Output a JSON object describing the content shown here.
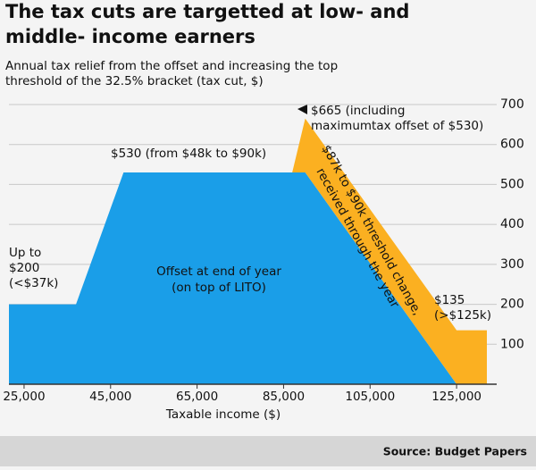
{
  "chart_data": {
    "type": "area",
    "title": [
      "The tax cuts are targetted at low- and",
      "middle- income earners"
    ],
    "subtitle": [
      "Annual tax relief from the offset and increasing the top",
      "threshold of the 32.5% bracket (tax cut, $)"
    ],
    "x_label": "Taxable income ($)",
    "source": "Source: Budget Papers",
    "stacked": true,
    "x": [
      21500,
      37000,
      48000,
      87000,
      90000,
      125000,
      132000
    ],
    "series": [
      {
        "name": [
          "Offset at end of year",
          "(on top of LITO)"
        ],
        "color": "#1a9ee8",
        "values": [
          200,
          200,
          530,
          530,
          530,
          0,
          0
        ]
      },
      {
        "name": [
          "$87k to $90k threshold change,",
          "received through the year"
        ],
        "color": "#fbb021",
        "values": [
          0,
          0,
          0,
          0,
          135,
          135,
          135
        ]
      }
    ],
    "annotations": [
      [
        "Up to",
        "$200",
        "(<$37k)"
      ],
      [
        "$530 (from $48k to $90k)"
      ],
      [
        "$665 (including",
        "maximumtax offset of $530)"
      ],
      [
        "$135",
        "(>$125k)"
      ]
    ],
    "xlim": [
      21500,
      132000
    ],
    "ylim": [
      0,
      700
    ],
    "xticks": [
      {
        "value": 25000,
        "label": "25,000"
      },
      {
        "value": 45000,
        "label": "45,000"
      },
      {
        "value": 65000,
        "label": "65,000"
      },
      {
        "value": 85000,
        "label": "85,000"
      },
      {
        "value": 105000,
        "label": "105,000"
      },
      {
        "value": 125000,
        "label": "125,000"
      }
    ],
    "yticks": [
      100,
      200,
      300,
      400,
      500,
      600,
      700
    ],
    "grid": true
  }
}
